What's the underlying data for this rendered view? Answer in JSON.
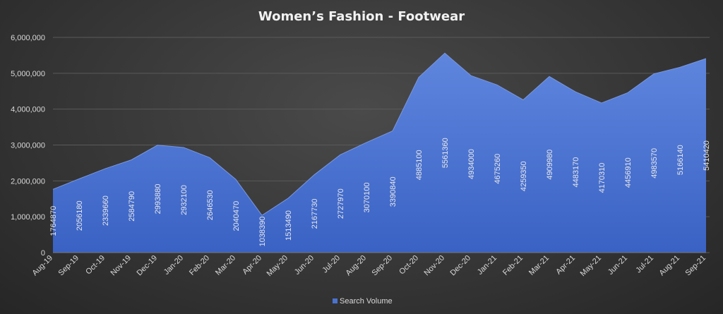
{
  "chart_data": {
    "type": "area",
    "title": "Women’s  Fashion - Footwear",
    "xlabel": "",
    "ylabel": "",
    "categories": [
      "Aug-19",
      "Sep-19",
      "Oct-19",
      "Nov-19",
      "Dec-19",
      "Jan-20",
      "Feb-20",
      "Mar-20",
      "Apr-20",
      "May-20",
      "Jun-20",
      "Jul-20",
      "Aug-20",
      "Sep-20",
      "Oct-20",
      "Nov-20",
      "Dec-20",
      "Jan-21",
      "Feb-21",
      "Mar-21",
      "Apr-21",
      "May-21",
      "Jun-21",
      "Jul-21",
      "Aug-21",
      "Sep-21"
    ],
    "series": [
      {
        "name": "Search Volume",
        "values": [
          1764870,
          2056180,
          2339660,
          2584790,
          2993880,
          2932100,
          2646530,
          2040470,
          1038390,
          1513490,
          2167730,
          2727970,
          3070100,
          3390840,
          4885100,
          5561360,
          4934000,
          4675260,
          4259350,
          4909980,
          4483170,
          4170310,
          4456910,
          4983570,
          5166140,
          5410420
        ],
        "color": "#4a73cf"
      }
    ],
    "ylim": [
      0,
      6000000
    ],
    "yticks": [
      "0",
      "1,000,000",
      "2,000,000",
      "3,000,000",
      "4,000,000",
      "5,000,000",
      "6,000,000"
    ],
    "grid": true,
    "legend": "bottom",
    "data_labels": true
  }
}
